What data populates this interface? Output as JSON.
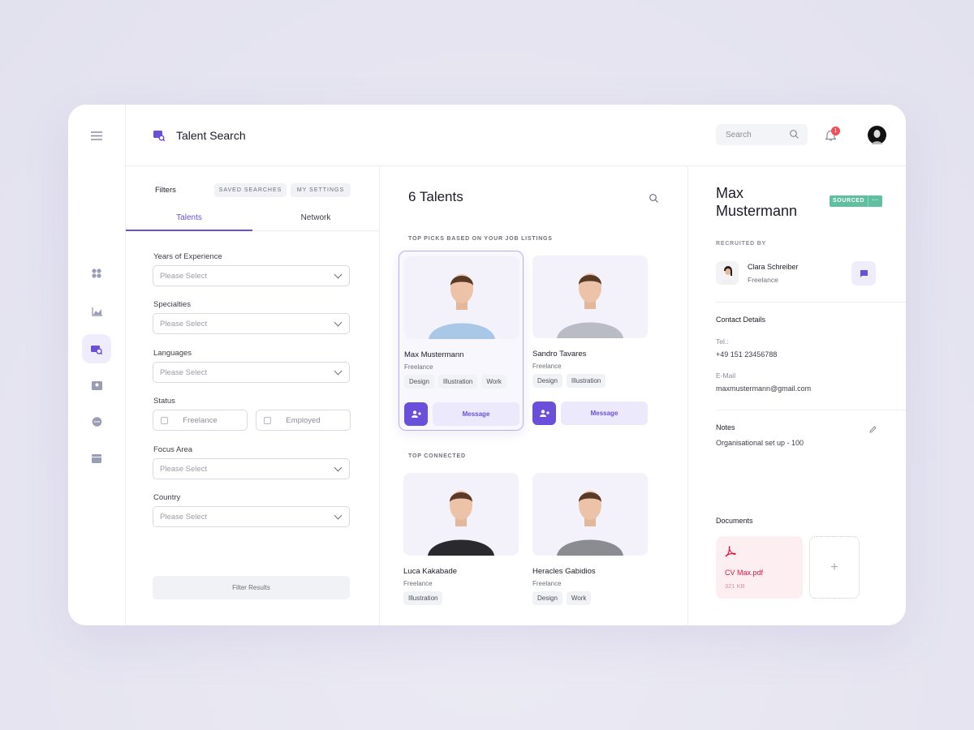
{
  "colors": {
    "accent": "#6a4fdb",
    "sourced": "#5fbf9f",
    "notification": "#ef4f55",
    "pdf": "#e3173e",
    "background": "#e4e3f0"
  },
  "header": {
    "title": "Talent Search",
    "search_placeholder": "Search",
    "notification_count": "1"
  },
  "sidebar": {
    "items": [
      "menu-icon",
      "dashboard-icon",
      "analytics-icon",
      "talent-search-icon",
      "contacts-icon",
      "chat-icon",
      "wallet-icon"
    ],
    "active": "talent-search-icon"
  },
  "filters": {
    "title": "Filters",
    "saved_searches": "SAVED SEARCHES",
    "my_settings": "MY SETTINGS",
    "tabs": [
      {
        "label": "Talents",
        "active": true
      },
      {
        "label": "Network",
        "active": false
      }
    ],
    "fields": [
      {
        "label": "Years of Experience",
        "value": "Please Select"
      },
      {
        "label": "Specialties",
        "value": "Please Select"
      },
      {
        "label": "Languages",
        "value": "Please Select"
      },
      {
        "label": "Status"
      },
      {
        "label": "Focus Area",
        "value": "Please Select"
      },
      {
        "label": "Country",
        "value": "Please Select"
      }
    ],
    "status_options": [
      {
        "label": "Freelance",
        "checked": false
      },
      {
        "label": "Employed",
        "checked": false
      }
    ],
    "submit": "Filter Results"
  },
  "results": {
    "title": "6 Talents",
    "sections": [
      {
        "label": "TOP PICKS BASED ON YOUR JOB LISTINGS",
        "talents": [
          {
            "name": "Max Mustermann",
            "status": "Freelance",
            "tags": [
              "Design",
              "Illustration",
              "Work"
            ],
            "message": "Message",
            "selected": true
          },
          {
            "name": "Sandro Tavares",
            "status": "Freelance",
            "tags": [
              "Design",
              "Illustration"
            ],
            "message": "Message"
          }
        ]
      },
      {
        "label": "TOP CONNECTED",
        "talents": [
          {
            "name": "Luca Kakabade",
            "status": "Freelance",
            "tags": [
              "Illustration"
            ]
          },
          {
            "name": "Heracles Gabidios",
            "status": "Freelance",
            "tags": [
              "Design",
              "Work"
            ]
          }
        ]
      }
    ]
  },
  "detail": {
    "first_name": "Max",
    "last_name": "Mustermann",
    "badge": "SOURCED",
    "badge_more": "···",
    "recruited_by_label": "RECRUITED BY",
    "recruiter": {
      "name": "Clara Schreiber",
      "status": "Freelance"
    },
    "contact_title": "Contact Details",
    "tel_label": "Tel.:",
    "tel": "+49 151 23456788",
    "email_label": "E-Mail",
    "email": "maxmustermann@gmail.com",
    "notes_title": "Notes",
    "notes": "Organisational set up - 100",
    "documents_title": "Documents",
    "documents": [
      {
        "name": "CV Max.pdf",
        "size": "321 KB"
      }
    ],
    "add_document": "+"
  }
}
